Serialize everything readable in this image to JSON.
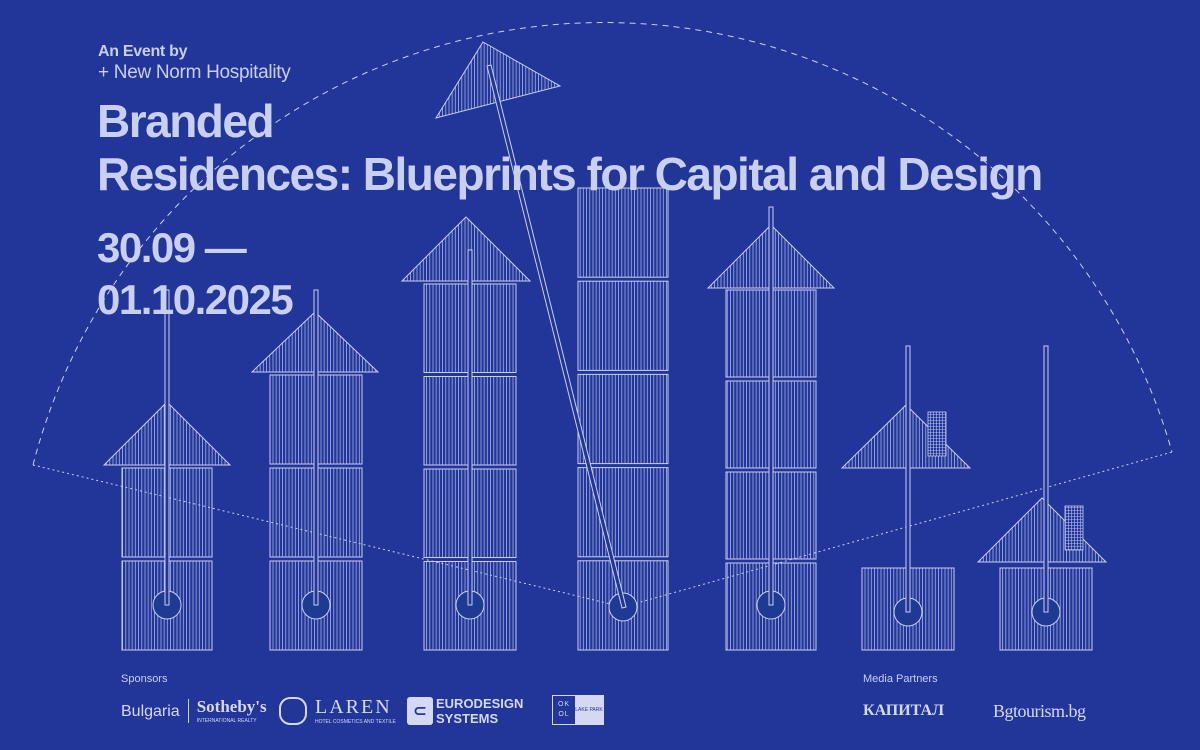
{
  "header": {
    "event_by": "An Event by",
    "organizer": "+ New Norm Hospitality"
  },
  "title": {
    "line1": "Branded",
    "line2": "Residences:  Blueprints for Capital and Design"
  },
  "dates": {
    "line1": "30.09 —",
    "line2": "01.10.2025"
  },
  "sponsors": {
    "label": "Sponsors",
    "items": [
      {
        "name": "Bulgaria",
        "brand": "Sotheby's",
        "sub": "INTERNATIONAL REALTY"
      },
      {
        "name": "LAREN",
        "sub": "HOTEL COSMETICS AND TEXTILE"
      },
      {
        "name": "EURODESIGN",
        "sub": "SYSTEMS"
      },
      {
        "name": "OK OL",
        "sub": "LAKE PARK"
      }
    ]
  },
  "media_partners": {
    "label": "Media Partners",
    "items": [
      "КАПИТАЛ",
      "Bgtourism.bg"
    ]
  },
  "colors": {
    "background": "#22369a",
    "line": "#c9cfee"
  }
}
